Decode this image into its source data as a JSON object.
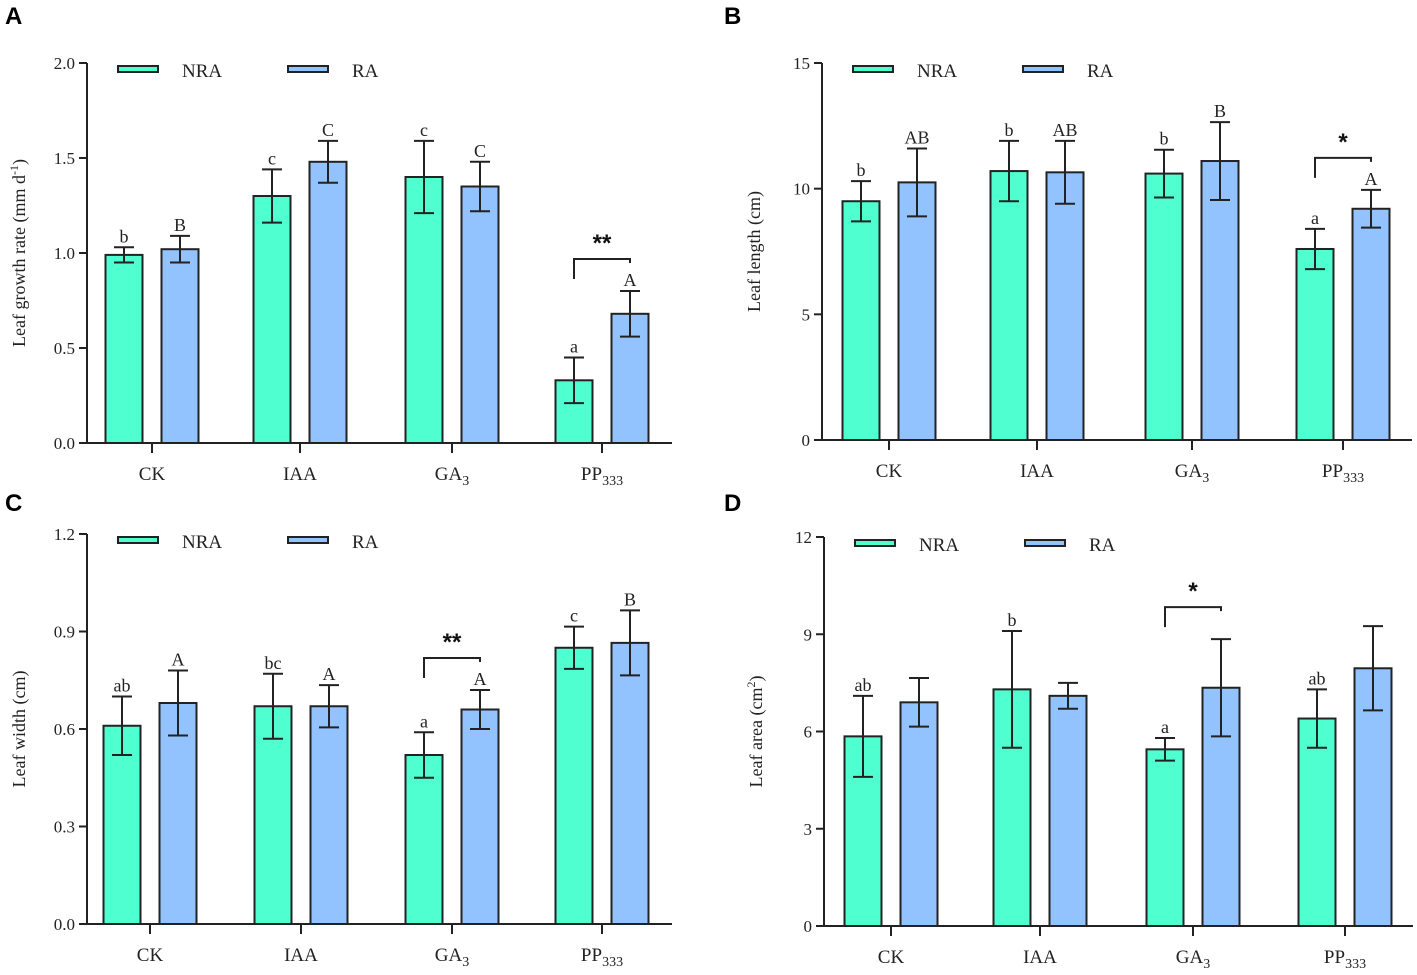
{
  "colors": {
    "NRA": "#4fffcf",
    "RA": "#93c3ff",
    "axis": "#222222"
  },
  "chart_data": [
    {
      "panel": "A",
      "type": "bar",
      "ylabel": {
        "text": "Leaf growth rate (mm d",
        "sup": "-1",
        "tail": ")"
      },
      "categories": [
        "CK",
        "IAA",
        "GA3",
        "PP333"
      ],
      "ylim": [
        0,
        2.0
      ],
      "yticks": [
        "0.0",
        "0.5",
        "1.0",
        "1.5",
        "2.0"
      ],
      "legend": [
        "NRA",
        "RA"
      ],
      "legend_position": "top-left",
      "series": [
        {
          "name": "NRA",
          "values": [
            0.99,
            1.3,
            1.4,
            0.33
          ],
          "errors": [
            0.04,
            0.14,
            0.19,
            0.12
          ],
          "letters": [
            "b",
            "c",
            "c",
            "a"
          ]
        },
        {
          "name": "RA",
          "values": [
            1.02,
            1.48,
            1.35,
            0.68
          ],
          "errors": [
            0.07,
            0.11,
            0.13,
            0.12
          ],
          "letters": [
            "B",
            "C",
            "C",
            "A"
          ]
        }
      ],
      "significance": [
        {
          "category": "PP333",
          "mark": "**"
        }
      ]
    },
    {
      "panel": "B",
      "type": "bar",
      "ylabel": {
        "text": "Leaf length (cm)",
        "sup": "",
        "tail": ""
      },
      "categories": [
        "CK",
        "IAA",
        "GA3",
        "PP333"
      ],
      "ylim": [
        0,
        15
      ],
      "yticks": [
        "0",
        "5",
        "10",
        "15"
      ],
      "legend": [
        "NRA",
        "RA"
      ],
      "legend_position": "top-left",
      "series": [
        {
          "name": "NRA",
          "values": [
            9.5,
            10.7,
            10.6,
            7.6
          ],
          "errors": [
            0.8,
            1.2,
            0.95,
            0.8
          ],
          "letters": [
            "b",
            "b",
            "b",
            "a"
          ]
        },
        {
          "name": "RA",
          "values": [
            10.25,
            10.65,
            11.1,
            9.2
          ],
          "errors": [
            1.35,
            1.25,
            1.55,
            0.75
          ],
          "letters": [
            "AB",
            "AB",
            "B",
            "A"
          ]
        }
      ],
      "significance": [
        {
          "category": "PP333",
          "mark": "*"
        }
      ]
    },
    {
      "panel": "C",
      "type": "bar",
      "ylabel": {
        "text": "Leaf width (cm)",
        "sup": "",
        "tail": ""
      },
      "categories": [
        "CK",
        "IAA",
        "GA3",
        "PP333"
      ],
      "ylim": [
        0,
        1.2
      ],
      "yticks": [
        "0.0",
        "0.3",
        "0.6",
        "0.9",
        "1.2"
      ],
      "legend": [
        "NRA",
        "RA"
      ],
      "legend_position": "top-left",
      "series": [
        {
          "name": "NRA",
          "values": [
            0.61,
            0.67,
            0.52,
            0.85
          ],
          "errors": [
            0.09,
            0.1,
            0.07,
            0.065
          ],
          "letters": [
            "ab",
            "bc",
            "a",
            "c"
          ]
        },
        {
          "name": "RA",
          "values": [
            0.68,
            0.67,
            0.66,
            0.865
          ],
          "errors": [
            0.1,
            0.065,
            0.06,
            0.1
          ],
          "letters": [
            "A",
            "A",
            "A",
            "B"
          ]
        }
      ],
      "significance": [
        {
          "category": "GA3",
          "mark": "**"
        }
      ]
    },
    {
      "panel": "D",
      "type": "bar",
      "ylabel": {
        "text": "Leaf area (cm",
        "sup": "2",
        "tail": ")"
      },
      "categories": [
        "CK",
        "IAA",
        "GA3",
        "PP333"
      ],
      "ylim": [
        0,
        12
      ],
      "yticks": [
        "0",
        "3",
        "6",
        "9",
        "12"
      ],
      "legend": [
        "NRA",
        "RA"
      ],
      "legend_position": "top-left",
      "series": [
        {
          "name": "NRA",
          "values": [
            5.85,
            7.3,
            5.45,
            6.4
          ],
          "errors": [
            1.25,
            1.8,
            0.35,
            0.9
          ],
          "letters": [
            "ab",
            "b",
            "a",
            "ab"
          ]
        },
        {
          "name": "RA",
          "values": [
            6.9,
            7.1,
            7.35,
            7.95
          ],
          "errors": [
            0.75,
            0.4,
            1.5,
            1.3
          ],
          "letters": [
            "",
            "",
            "",
            ""
          ]
        }
      ],
      "significance": [
        {
          "category": "GA3",
          "mark": "*"
        }
      ]
    }
  ]
}
